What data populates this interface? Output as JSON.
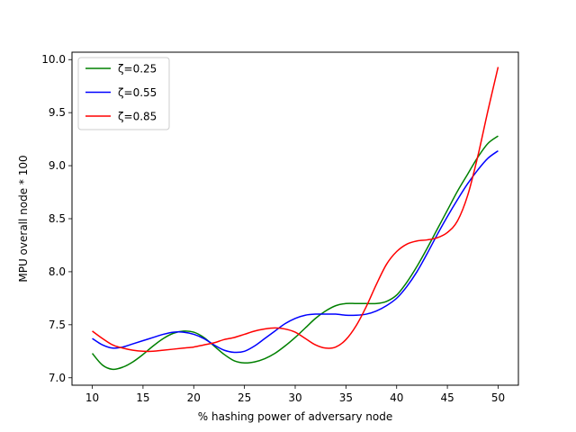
{
  "chart_data": {
    "type": "line",
    "title": "",
    "xlabel": "% hashing power of adversary node",
    "ylabel": "MPU overall node * 100",
    "xlim": [
      8,
      52
    ],
    "ylim": [
      6.93,
      10.07
    ],
    "x_ticks": [
      10,
      15,
      20,
      25,
      30,
      35,
      40,
      45,
      50
    ],
    "x_tick_labels": [
      "10",
      "15",
      "20",
      "25",
      "30",
      "35",
      "40",
      "45",
      "50"
    ],
    "y_ticks": [
      7.0,
      7.5,
      8.0,
      8.5,
      9.0,
      9.5,
      10.0
    ],
    "y_tick_labels": [
      "7.0",
      "7.5",
      "8.0",
      "8.5",
      "9.0",
      "9.5",
      "10.0"
    ],
    "grid": false,
    "legend_position": "top-left",
    "series": [
      {
        "name": "ζ=0.25",
        "color": "#008000",
        "x": [
          10,
          11,
          12,
          13,
          14,
          15,
          16,
          17,
          18,
          19,
          20,
          21,
          22,
          23,
          24,
          25,
          26,
          27,
          28,
          29,
          30,
          31,
          32,
          33,
          34,
          35,
          36,
          37,
          38,
          39,
          40,
          41,
          42,
          43,
          44,
          45,
          46,
          47,
          48,
          49,
          50
        ],
        "y": [
          7.23,
          7.12,
          7.08,
          7.1,
          7.15,
          7.22,
          7.3,
          7.37,
          7.42,
          7.44,
          7.43,
          7.38,
          7.3,
          7.22,
          7.16,
          7.14,
          7.15,
          7.18,
          7.23,
          7.3,
          7.38,
          7.47,
          7.56,
          7.63,
          7.68,
          7.7,
          7.7,
          7.7,
          7.7,
          7.72,
          7.78,
          7.9,
          8.05,
          8.22,
          8.4,
          8.58,
          8.76,
          8.92,
          9.08,
          9.21,
          9.28
        ]
      },
      {
        "name": "ζ=0.55",
        "color": "#0000ff",
        "x": [
          10,
          11,
          12,
          13,
          14,
          15,
          16,
          17,
          18,
          19,
          20,
          21,
          22,
          23,
          24,
          25,
          26,
          27,
          28,
          29,
          30,
          31,
          32,
          33,
          34,
          35,
          36,
          37,
          38,
          39,
          40,
          41,
          42,
          43,
          44,
          45,
          46,
          47,
          48,
          49,
          50
        ],
        "y": [
          7.37,
          7.31,
          7.28,
          7.29,
          7.32,
          7.35,
          7.38,
          7.41,
          7.43,
          7.43,
          7.41,
          7.37,
          7.31,
          7.26,
          7.24,
          7.25,
          7.3,
          7.37,
          7.44,
          7.51,
          7.56,
          7.59,
          7.6,
          7.6,
          7.6,
          7.59,
          7.59,
          7.6,
          7.63,
          7.68,
          7.75,
          7.86,
          8.0,
          8.17,
          8.35,
          8.52,
          8.68,
          8.83,
          8.96,
          9.07,
          9.14
        ]
      },
      {
        "name": "ζ=0.85",
        "color": "#ff0000",
        "x": [
          10,
          11,
          12,
          13,
          14,
          15,
          16,
          17,
          18,
          19,
          20,
          21,
          22,
          23,
          24,
          25,
          26,
          27,
          28,
          29,
          30,
          31,
          32,
          33,
          34,
          35,
          36,
          37,
          38,
          39,
          40,
          41,
          42,
          43,
          44,
          45,
          46,
          47,
          48,
          49,
          50
        ],
        "y": [
          7.44,
          7.37,
          7.31,
          7.28,
          7.26,
          7.25,
          7.25,
          7.26,
          7.27,
          7.28,
          7.29,
          7.31,
          7.33,
          7.36,
          7.38,
          7.41,
          7.44,
          7.46,
          7.47,
          7.46,
          7.43,
          7.37,
          7.31,
          7.28,
          7.29,
          7.36,
          7.49,
          7.67,
          7.88,
          8.07,
          8.19,
          8.26,
          8.29,
          8.3,
          8.32,
          8.37,
          8.48,
          8.72,
          9.09,
          9.52,
          9.93
        ]
      }
    ]
  }
}
